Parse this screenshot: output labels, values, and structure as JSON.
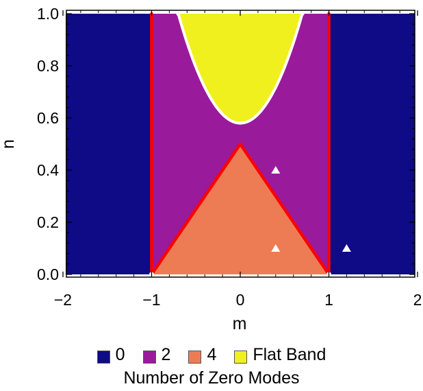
{
  "chart_data": {
    "type": "heatmap",
    "title": "",
    "xlabel": "m",
    "ylabel": "n",
    "xlim": [
      -2,
      2
    ],
    "ylim": [
      0,
      1
    ],
    "xticks": [
      "−2",
      "−1",
      "0",
      "1",
      "2"
    ],
    "yticks": [
      "0.0",
      "0.2",
      "0.4",
      "0.6",
      "0.8",
      "1.0"
    ],
    "regions": [
      {
        "zero_modes": "0",
        "color": "#0f0a85",
        "description_region": "|m| > 1"
      },
      {
        "zero_modes": "2",
        "color": "#9a1a9c",
        "description_region": "|m| < 1 outside triangle and flat band"
      },
      {
        "zero_modes": "4",
        "color": "#ed7c55",
        "vertices": [
          [
            -1,
            0
          ],
          [
            0,
            0.5
          ],
          [
            1,
            0
          ]
        ]
      },
      {
        "zero_modes": "Flat Band",
        "color": "#f0f01f",
        "vertex": [
          0,
          0.58
        ],
        "edges": [
          [
            -0.7,
            1.0
          ],
          [
            0.7,
            1.0
          ]
        ]
      }
    ],
    "boundaries": {
      "red_lines": [
        [
          [
            -1,
            0
          ],
          [
            -1,
            1
          ]
        ],
        [
          [
            1,
            0
          ],
          [
            1,
            1
          ]
        ],
        [
          [
            -1,
            0
          ],
          [
            0,
            0.5
          ]
        ],
        [
          [
            0,
            0.5
          ],
          [
            1,
            0
          ]
        ]
      ],
      "red_color": "#ff0000",
      "white_curve_color": "#ffffff"
    },
    "markers": [
      {
        "x": 0.4,
        "y": 0.4,
        "shape": "triangle",
        "color": "#ffffff"
      },
      {
        "x": 0.4,
        "y": 0.1,
        "shape": "triangle",
        "color": "#ffffff"
      },
      {
        "x": 1.2,
        "y": 0.1,
        "shape": "triangle",
        "color": "#ffffff"
      }
    ],
    "legend": {
      "placement": "bottom",
      "title": "Number of Zero Modes",
      "entries": [
        {
          "label": "0",
          "color": "#0f0a85"
        },
        {
          "label": "2",
          "color": "#9a1a9c"
        },
        {
          "label": "4",
          "color": "#ed7c55"
        },
        {
          "label": "Flat Band",
          "color": "#f0f01f"
        }
      ]
    }
  }
}
